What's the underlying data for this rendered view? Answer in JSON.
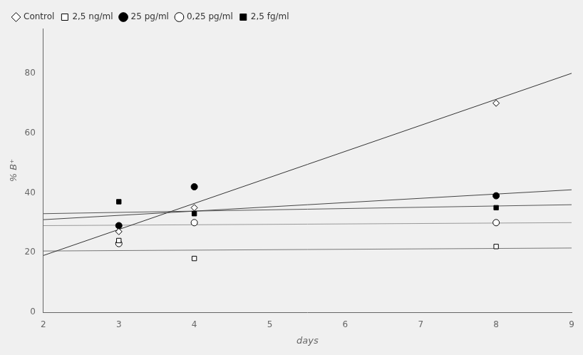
{
  "chart_data": {
    "type": "scatter",
    "xlabel": "days",
    "ylabel": "% B⁺",
    "xlim": [
      2,
      9
    ],
    "ylim": [
      0,
      95
    ],
    "xticks": [
      2,
      3,
      4,
      5,
      6,
      7,
      8,
      9
    ],
    "yticks": [
      0,
      20,
      40,
      60,
      80
    ],
    "grid": false,
    "legend": "upper left",
    "series": [
      {
        "name": "Control",
        "marker": "open diamond",
        "color": "#333333",
        "x": [
          3,
          4,
          8
        ],
        "values": [
          27,
          35,
          70
        ],
        "trend": {
          "x": [
            2,
            9
          ],
          "values": [
            19,
            80
          ]
        }
      },
      {
        "name": "2,5 ng/ml",
        "marker": "open square",
        "color": "#777777",
        "x": [
          3,
          4,
          8
        ],
        "values": [
          24,
          18,
          22
        ],
        "trend": {
          "x": [
            2,
            9
          ],
          "values": [
            20.5,
            21.5
          ]
        }
      },
      {
        "name": "25 pg/ml",
        "marker": "filled circle",
        "color": "#444444",
        "x": [
          3,
          4,
          8
        ],
        "values": [
          29,
          42,
          39
        ],
        "trend": {
          "x": [
            2,
            9
          ],
          "values": [
            31,
            41
          ]
        }
      },
      {
        "name": "0,25 pg/ml",
        "marker": "open circle",
        "color": "#999999",
        "x": [
          3,
          4,
          8
        ],
        "values": [
          23,
          30,
          30
        ],
        "trend": {
          "x": [
            2,
            9
          ],
          "values": [
            29,
            30
          ]
        }
      },
      {
        "name": "2,5 fg/ml",
        "marker": "filled square",
        "color": "#555555",
        "x": [
          3,
          4,
          8
        ],
        "values": [
          37,
          33,
          35
        ],
        "trend": {
          "x": [
            2,
            9
          ],
          "values": [
            33,
            36
          ]
        }
      }
    ]
  }
}
